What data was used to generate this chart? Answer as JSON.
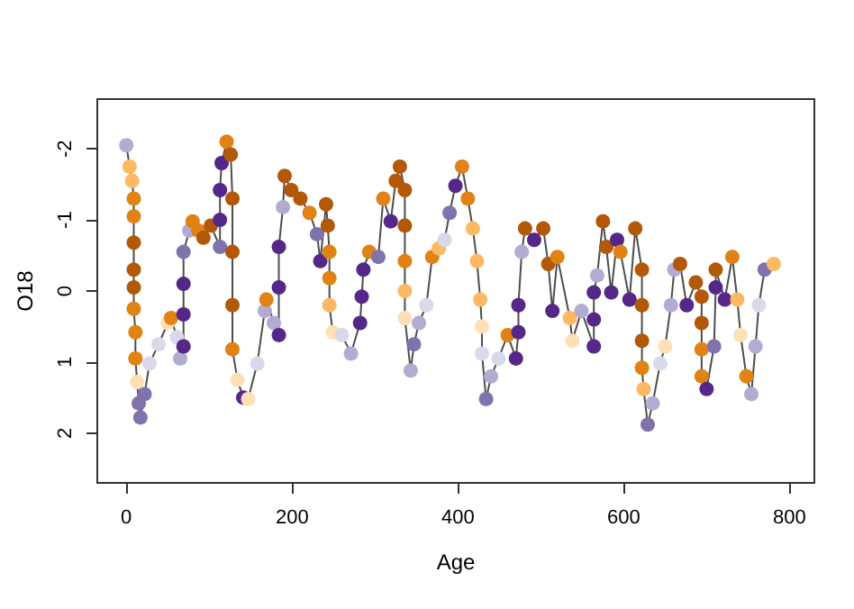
{
  "chart_data": {
    "type": "line",
    "xlabel": "Age",
    "ylabel": "O18",
    "xlim": [
      -35,
      830
    ],
    "xticks": [
      0,
      200,
      400,
      600,
      800
    ],
    "ylim": [
      2.7,
      -2.7
    ],
    "yticks": [
      2,
      1,
      0,
      -1,
      -2
    ],
    "grid": false,
    "marker": "circle",
    "line_style": "solid",
    "x": [
      0,
      4,
      7,
      9,
      9,
      9,
      9,
      9,
      9,
      11,
      11,
      13,
      15,
      17,
      22,
      28,
      39,
      50,
      54,
      61,
      65,
      69,
      69,
      69,
      69,
      76,
      80,
      87,
      93,
      102,
      113,
      113,
      113,
      115,
      121,
      126,
      128,
      128,
      128,
      128,
      134,
      141,
      147,
      158,
      167,
      169,
      178,
      184,
      184,
      184,
      189,
      191,
      199,
      210,
      221,
      230,
      234,
      241,
      243,
      245,
      245,
      245,
      249,
      260,
      271,
      282,
      284,
      286,
      293,
      304,
      310,
      319,
      325,
      330,
      336,
      336,
      336,
      336,
      336,
      343,
      347,
      353,
      362,
      369,
      377,
      384,
      390,
      397,
      405,
      412,
      418,
      423,
      427,
      429,
      429,
      434,
      440,
      449,
      460,
      470,
      473,
      473,
      477,
      481,
      492,
      503,
      509,
      514,
      520,
      535,
      538,
      549,
      564,
      564,
      564,
      568,
      575,
      579,
      585,
      592,
      596,
      607,
      614,
      622,
      622,
      622,
      622,
      624,
      629,
      635,
      644,
      650,
      657,
      661,
      668,
      676,
      687,
      694,
      694,
      694,
      694,
      700,
      709,
      711,
      711,
      722,
      731,
      737,
      741,
      748,
      754,
      759,
      763,
      770,
      781
    ],
    "series": [
      {
        "color": "#4d4d4d",
        "values": [
          -2.05,
          -1.75,
          -1.55,
          -1.3,
          -1.05,
          -0.68,
          -0.3,
          -0.05,
          0.25,
          0.58,
          0.95,
          1.28,
          1.58,
          1.78,
          1.45,
          1.02,
          0.75,
          0.45,
          0.38,
          0.65,
          0.95,
          0.78,
          0.33,
          -0.1,
          -0.55,
          -0.85,
          -0.98,
          -0.85,
          -0.75,
          -0.92,
          -0.62,
          -1.0,
          -1.42,
          -1.8,
          -2.1,
          -1.92,
          -1.3,
          -0.55,
          0.2,
          0.82,
          1.25,
          1.5,
          1.52,
          1.02,
          0.28,
          0.12,
          0.45,
          0.62,
          -0.05,
          -0.62,
          -1.18,
          -1.62,
          -1.42,
          -1.3,
          -1.1,
          -0.8,
          -0.42,
          -1.22,
          -0.92,
          -0.55,
          -0.18,
          0.2,
          0.58,
          0.62,
          0.88,
          0.45,
          0.08,
          -0.3,
          -0.55,
          -0.48,
          -1.3,
          -0.98,
          -1.55,
          -1.75,
          -1.42,
          -0.92,
          -0.42,
          0,
          0.38,
          1.12,
          0.75,
          0.45,
          0.2,
          -0.48,
          -0.6,
          -0.72,
          -1.1,
          -1.48,
          -1.75,
          -1.3,
          -0.88,
          -0.42,
          0.12,
          0.5,
          0.88,
          1.52,
          1.2,
          0.95,
          0.62,
          0.95,
          0.58,
          0.2,
          -0.55,
          -0.88,
          -0.72,
          -0.88,
          -0.38,
          0.28,
          -0.48,
          0.38,
          0.7,
          0.28,
          0.78,
          0.4,
          0.02,
          -0.22,
          -0.98,
          -0.62,
          0.02,
          -0.72,
          -0.55,
          0.12,
          -0.88,
          -0.3,
          0.2,
          0.7,
          1.08,
          1.38,
          1.88,
          1.58,
          1.02,
          0.78,
          0.2,
          -0.3,
          -0.38,
          0.2,
          -0.12,
          0.08,
          0.45,
          0.82,
          1.2,
          1.38,
          0.78,
          -0.05,
          -0.3,
          0.12,
          -0.48,
          0.12,
          0.62,
          1.2,
          1.45,
          0.78,
          0.2,
          -0.3,
          -0.38
        ],
        "colors": [
          "#b2abd2",
          "#fdb863",
          "#fdb863",
          "#e08214",
          "#e08214",
          "#b35806",
          "#b35806",
          "#b35806",
          "#e08214",
          "#e08214",
          "#e08214",
          "#fee0b6",
          "#8073ac",
          "#8073ac",
          "#8073ac",
          "#d8daeb",
          "#d8daeb",
          "#fee0b6",
          "#e08214",
          "#d8daeb",
          "#b2abd2",
          "#542788",
          "#542788",
          "#542788",
          "#8073ac",
          "#b2abd2",
          "#e08214",
          "#e08214",
          "#b35806",
          "#b35806",
          "#8073ac",
          "#542788",
          "#542788",
          "#542788",
          "#e08214",
          "#b35806",
          "#b35806",
          "#b35806",
          "#b35806",
          "#e08214",
          "#fee0b6",
          "#542788",
          "#fee0b6",
          "#d8daeb",
          "#b2abd2",
          "#e08214",
          "#b2abd2",
          "#542788",
          "#542788",
          "#542788",
          "#b2abd2",
          "#b35806",
          "#b35806",
          "#b35806",
          "#e08214",
          "#8073ac",
          "#542788",
          "#b35806",
          "#b35806",
          "#e08214",
          "#e08214",
          "#fdb863",
          "#fee0b6",
          "#d8daeb",
          "#b2abd2",
          "#542788",
          "#542788",
          "#542788",
          "#e08214",
          "#8073ac",
          "#e08214",
          "#542788",
          "#b35806",
          "#b35806",
          "#b35806",
          "#b35806",
          "#e08214",
          "#fdb863",
          "#fee0b6",
          "#b2abd2",
          "#8073ac",
          "#b2abd2",
          "#d8daeb",
          "#e08214",
          "#fdb863",
          "#d8daeb",
          "#8073ac",
          "#542788",
          "#e08214",
          "#e08214",
          "#fdb863",
          "#fdb863",
          "#fdb863",
          "#fee0b6",
          "#d8daeb",
          "#8073ac",
          "#b2abd2",
          "#d8daeb",
          "#e08214",
          "#542788",
          "#542788",
          "#542788",
          "#b2abd2",
          "#b35806",
          "#542788",
          "#b35806",
          "#b35806",
          "#542788",
          "#e08214",
          "#fdb863",
          "#fee0b6",
          "#b2abd2",
          "#542788",
          "#542788",
          "#542788",
          "#b2abd2",
          "#b35806",
          "#b35806",
          "#542788",
          "#542788",
          "#e08214",
          "#542788",
          "#b35806",
          "#b35806",
          "#b35806",
          "#b35806",
          "#e08214",
          "#fdb863",
          "#8073ac",
          "#b2abd2",
          "#d8daeb",
          "#fee0b6",
          "#b2abd2",
          "#b2abd2",
          "#b35806",
          "#542788",
          "#b35806",
          "#b35806",
          "#b35806",
          "#e08214",
          "#e08214",
          "#542788",
          "#8073ac",
          "#542788",
          "#b35806",
          "#542788",
          "#e08214",
          "#fdb863",
          "#fee0b6",
          "#e08214",
          "#b2abd2",
          "#b2abd2",
          "#d8daeb",
          "#8073ac",
          "#fdb863"
        ]
      }
    ]
  }
}
